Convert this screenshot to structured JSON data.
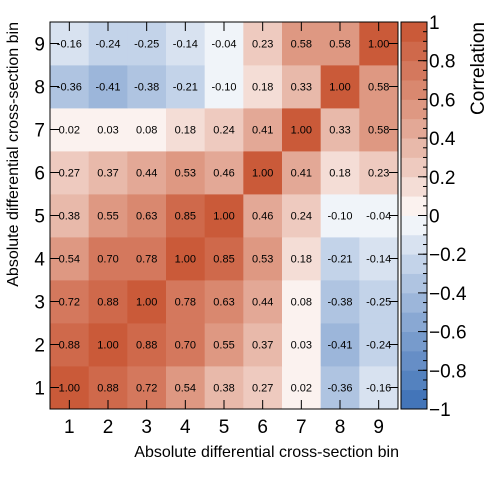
{
  "chart_data": {
    "type": "heatmap",
    "x_categories": [
      "1",
      "2",
      "3",
      "4",
      "5",
      "6",
      "7",
      "8",
      "9"
    ],
    "y_categories": [
      "1",
      "2",
      "3",
      "4",
      "5",
      "6",
      "7",
      "8",
      "9"
    ],
    "xlabel": "Absolute differential cross-section bin",
    "ylabel": "Absolute differential cross-section bin",
    "zlabel": "Correlation",
    "zlim": [
      -1,
      1
    ],
    "colorbar_ticks": [
      "-1",
      "-0.8",
      "-0.6",
      "-0.4",
      "-0.2",
      "0",
      "0.2",
      "0.4",
      "0.6",
      "0.8",
      "1"
    ],
    "colors": {
      "positive": "#c85330",
      "negative": "#3b6fb6",
      "zero": "#ffffff"
    },
    "values": [
      [
        1.0,
        0.88,
        0.72,
        0.54,
        0.38,
        0.27,
        0.02,
        -0.36,
        -0.16
      ],
      [
        0.88,
        1.0,
        0.88,
        0.7,
        0.55,
        0.37,
        0.03,
        -0.41,
        -0.24
      ],
      [
        0.72,
        0.88,
        1.0,
        0.78,
        0.63,
        0.44,
        0.08,
        -0.38,
        -0.25
      ],
      [
        0.54,
        0.7,
        0.78,
        1.0,
        0.85,
        0.53,
        0.18,
        -0.21,
        -0.14
      ],
      [
        0.38,
        0.55,
        0.63,
        0.85,
        1.0,
        0.46,
        0.24,
        -0.1,
        -0.04
      ],
      [
        0.27,
        0.37,
        0.44,
        0.53,
        0.46,
        1.0,
        0.41,
        0.18,
        0.23
      ],
      [
        0.02,
        0.03,
        0.08,
        0.18,
        0.24,
        0.41,
        1.0,
        0.33,
        0.58
      ],
      [
        -0.36,
        -0.41,
        -0.38,
        -0.21,
        -0.1,
        0.18,
        0.33,
        1.0,
        0.58
      ],
      [
        -0.16,
        -0.24,
        -0.25,
        -0.14,
        -0.04,
        0.23,
        0.58,
        0.58,
        1.0
      ]
    ]
  }
}
